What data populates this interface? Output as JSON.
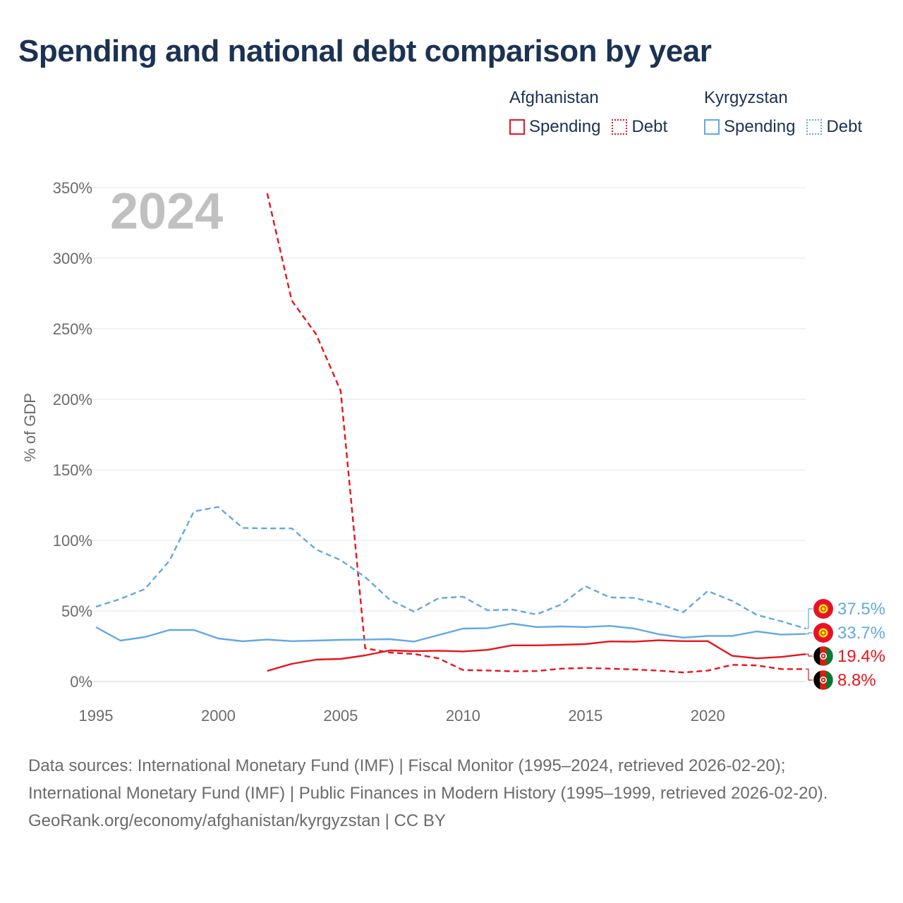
{
  "title": "Spending and national debt comparison by year",
  "legend": {
    "groups": [
      {
        "country": "Afghanistan",
        "color": "#e8141c",
        "items": [
          {
            "label": "Spending",
            "style": "solid"
          },
          {
            "label": "Debt",
            "style": "dotted"
          }
        ]
      },
      {
        "country": "Kyrgyzstan",
        "color": "#62a8e5",
        "items": [
          {
            "label": "Spending",
            "style": "solid"
          },
          {
            "label": "Debt",
            "style": "dotted"
          }
        ]
      }
    ]
  },
  "footer": {
    "sources": "Data sources: International Monetary Fund (IMF) | Fiscal Monitor (1995–2024, retrieved 2026-02-20); International Monetary Fund (IMF) | Public Finances in Modern History (1995–1999, retrieved 2026-02-20).",
    "credit": "GeoRank.org/economy/afghanistan/kyrgyzstan | CC BY"
  },
  "chart_data": {
    "type": "line",
    "current_year": "2024",
    "ylabel": "% of GDP",
    "xlabel": "",
    "xlim": [
      1995,
      2024
    ],
    "ylim": [
      0,
      350
    ],
    "x_ticks": [
      1995,
      2000,
      2005,
      2010,
      2015,
      2020
    ],
    "y_ticks": [
      0,
      50,
      100,
      150,
      200,
      250,
      300,
      350
    ],
    "y_tick_labels": [
      "0%",
      "50%",
      "100%",
      "150%",
      "200%",
      "250%",
      "300%",
      "350%"
    ],
    "grid": true,
    "series": [
      {
        "name": "Afghanistan Spending",
        "country": "Afghanistan",
        "measure": "Spending",
        "color": "#e8141c",
        "dash": "solid",
        "x": [
          2002,
          2003,
          2004,
          2005,
          2006,
          2007,
          2008,
          2009,
          2010,
          2011,
          2012,
          2013,
          2014,
          2015,
          2016,
          2017,
          2018,
          2019,
          2020,
          2021,
          2022,
          2023,
          2024
        ],
        "values": [
          7.5,
          12.5,
          15.5,
          16,
          18.5,
          22,
          21.5,
          21.8,
          21.3,
          22.4,
          25.6,
          25.6,
          26,
          26.5,
          28.4,
          28.2,
          29.2,
          28.6,
          28.6,
          18.2,
          16.4,
          17.4,
          19.4
        ]
      },
      {
        "name": "Afghanistan Debt",
        "country": "Afghanistan",
        "measure": "Debt",
        "color": "#e8141c",
        "dash": "dashed",
        "x": [
          2002,
          2003,
          2004,
          2005,
          2006,
          2007,
          2008,
          2009,
          2010,
          2011,
          2012,
          2013,
          2014,
          2015,
          2016,
          2017,
          2018,
          2019,
          2020,
          2021,
          2022,
          2023,
          2024
        ],
        "values": [
          346,
          270,
          246,
          206,
          23.5,
          20.5,
          19.5,
          16.4,
          8.1,
          7.8,
          7.2,
          7.4,
          9.1,
          9.6,
          9.1,
          8.5,
          7.7,
          6.4,
          7.7,
          11.8,
          11.4,
          8.8,
          8.8
        ]
      },
      {
        "name": "Kyrgyzstan Spending",
        "country": "Kyrgyzstan",
        "measure": "Spending",
        "color": "#62a8e5",
        "dash": "solid",
        "x": [
          1995,
          1996,
          1997,
          1998,
          1999,
          2000,
          2001,
          2002,
          2003,
          2004,
          2005,
          2006,
          2007,
          2008,
          2009,
          2010,
          2011,
          2012,
          2013,
          2014,
          2015,
          2016,
          2017,
          2018,
          2019,
          2020,
          2021,
          2022,
          2023,
          2024
        ],
        "values": [
          38.5,
          29,
          31.5,
          36.5,
          36.5,
          30.5,
          28.5,
          29.7,
          28.6,
          29,
          29.5,
          29.7,
          30,
          28.3,
          32.9,
          37.5,
          37.8,
          41,
          38.6,
          39,
          38.6,
          39.4,
          37.5,
          33.5,
          31.1,
          32.3,
          32.3,
          35.5,
          33.2,
          33.7
        ]
      },
      {
        "name": "Kyrgyzstan Debt",
        "country": "Kyrgyzstan",
        "measure": "Debt",
        "color": "#62a8e5",
        "dash": "dashed",
        "x": [
          1995,
          1996,
          1997,
          1998,
          1999,
          2000,
          2001,
          2002,
          2003,
          2004,
          2005,
          2006,
          2007,
          2008,
          2009,
          2010,
          2011,
          2012,
          2013,
          2014,
          2015,
          2016,
          2017,
          2018,
          2019,
          2020,
          2021,
          2022,
          2023,
          2024
        ],
        "values": [
          53,
          58.5,
          65.5,
          85.5,
          120.5,
          123.7,
          108.8,
          108.5,
          108.5,
          93.5,
          86,
          74,
          58,
          49.5,
          59,
          60.1,
          50.5,
          51,
          47.5,
          54.5,
          67.5,
          59.6,
          59.2,
          55,
          49.1,
          64.1,
          57.1,
          47.2,
          42.7,
          37.5
        ]
      }
    ],
    "end_labels": [
      {
        "series": "Kyrgyzstan Debt",
        "text": "37.5%",
        "flag": "kyrgyzstan",
        "color": "#62a8e5"
      },
      {
        "series": "Kyrgyzstan Spending",
        "text": "33.7%",
        "flag": "kyrgyzstan",
        "color": "#62a8e5"
      },
      {
        "series": "Afghanistan Spending",
        "text": "19.4%",
        "flag": "afghanistan",
        "color": "#e8141c"
      },
      {
        "series": "Afghanistan Debt",
        "text": "8.8%",
        "flag": "afghanistan",
        "color": "#e8141c"
      }
    ]
  }
}
